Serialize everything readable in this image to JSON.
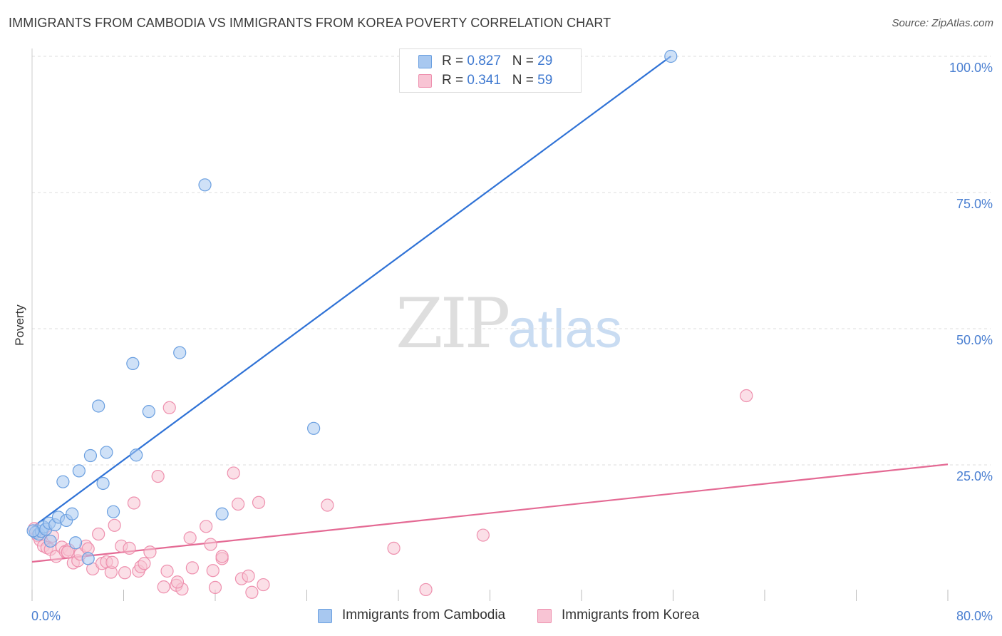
{
  "header": {
    "title": "IMMIGRANTS FROM CAMBODIA VS IMMIGRANTS FROM KOREA POVERTY CORRELATION CHART",
    "source": "Source: ZipAtlas.com"
  },
  "watermark": {
    "zip": "ZIP",
    "atlas": "atlas"
  },
  "legend_top": {
    "rows": [
      {
        "r_label": "R = ",
        "r_value": "0.827",
        "n_label": "N = ",
        "n_value": "29",
        "color": "#a8c8f0",
        "border": "#6a9fe0"
      },
      {
        "r_label": "R = ",
        "r_value": "0.341",
        "n_label": "N = ",
        "n_value": "59",
        "color": "#f8c4d4",
        "border": "#ee90ae"
      }
    ]
  },
  "legend_bottom": {
    "items": [
      {
        "label": "Immigrants from Cambodia",
        "color": "#a8c8f0",
        "border": "#6a9fe0"
      },
      {
        "label": "Immigrants from Korea",
        "color": "#f8c4d4",
        "border": "#ee90ae"
      }
    ]
  },
  "chart_data": {
    "type": "scatter",
    "title": "IMMIGRANTS FROM CAMBODIA VS IMMIGRANTS FROM KOREA POVERTY CORRELATION CHART",
    "xlabel": "",
    "ylabel": "Poverty",
    "xlim": [
      0,
      80
    ],
    "ylim": [
      0,
      104
    ],
    "x_ticks_labeled": [
      {
        "value": 0,
        "label": "0.0%"
      },
      {
        "value": 80,
        "label": "80.0%"
      }
    ],
    "y_ticks_labeled": [
      {
        "value": 25,
        "label": "25.0%"
      },
      {
        "value": 50,
        "label": "50.0%"
      },
      {
        "value": 75,
        "label": "75.0%"
      },
      {
        "value": 100,
        "label": "100.0%"
      }
    ],
    "x_minor_ticks": [
      0,
      8,
      16,
      24,
      32,
      40,
      48,
      56,
      64,
      72,
      80
    ],
    "grid": "horizontal dashed",
    "series": [
      {
        "name": "Immigrants from Cambodia",
        "color": "#6a9fe0",
        "fill": "#a8c8f0",
        "line_color": "#2f72d6",
        "trend": {
          "x": [
            0,
            55.8
          ],
          "y": [
            13.5,
            100.0
          ]
        },
        "points": [
          [
            0.3,
            12.6
          ],
          [
            0.6,
            12.3
          ],
          [
            0.8,
            12.8
          ],
          [
            1.0,
            13.6
          ],
          [
            1.2,
            13.2
          ],
          [
            1.5,
            14.3
          ],
          [
            1.6,
            11.0
          ],
          [
            2.0,
            14.0
          ],
          [
            2.3,
            15.4
          ],
          [
            2.7,
            21.9
          ],
          [
            3.0,
            14.8
          ],
          [
            3.5,
            16.0
          ],
          [
            3.8,
            10.7
          ],
          [
            4.1,
            23.9
          ],
          [
            4.9,
            7.8
          ],
          [
            5.1,
            26.7
          ],
          [
            5.8,
            35.8
          ],
          [
            6.2,
            21.6
          ],
          [
            6.5,
            27.3
          ],
          [
            7.1,
            16.4
          ],
          [
            8.8,
            43.6
          ],
          [
            9.1,
            26.8
          ],
          [
            10.2,
            34.8
          ],
          [
            12.9,
            45.6
          ],
          [
            15.1,
            76.4
          ],
          [
            16.6,
            16.0
          ],
          [
            24.6,
            31.7
          ],
          [
            55.8,
            100.0
          ],
          [
            0.1,
            12.9
          ]
        ]
      },
      {
        "name": "Immigrants from Korea",
        "color": "#ee90ae",
        "fill": "#f8c4d4",
        "line_color": "#e46a94",
        "trend": {
          "x": [
            0,
            80
          ],
          "y": [
            7.2,
            25.1
          ]
        },
        "points": [
          [
            0.2,
            13.3
          ],
          [
            0.5,
            12.0
          ],
          [
            0.7,
            11.2
          ],
          [
            1.0,
            10.1
          ],
          [
            1.3,
            9.8
          ],
          [
            1.6,
            9.5
          ],
          [
            1.8,
            11.9
          ],
          [
            2.1,
            8.2
          ],
          [
            2.6,
            9.9
          ],
          [
            2.9,
            9.1
          ],
          [
            3.2,
            9.4
          ],
          [
            3.6,
            7.0
          ],
          [
            4.0,
            7.4
          ],
          [
            4.2,
            8.6
          ],
          [
            4.7,
            10.1
          ],
          [
            4.9,
            9.6
          ],
          [
            5.3,
            5.9
          ],
          [
            5.8,
            12.3
          ],
          [
            6.1,
            6.9
          ],
          [
            6.5,
            7.2
          ],
          [
            6.9,
            5.3
          ],
          [
            7.2,
            13.9
          ],
          [
            7.8,
            10.1
          ],
          [
            8.1,
            5.2
          ],
          [
            8.5,
            9.7
          ],
          [
            8.9,
            18.0
          ],
          [
            9.3,
            5.5
          ],
          [
            9.5,
            6.3
          ],
          [
            9.8,
            6.9
          ],
          [
            10.3,
            9.0
          ],
          [
            11.0,
            22.9
          ],
          [
            11.5,
            2.6
          ],
          [
            11.8,
            5.5
          ],
          [
            12.0,
            35.5
          ],
          [
            12.6,
            2.9
          ],
          [
            13.1,
            2.2
          ],
          [
            13.8,
            11.6
          ],
          [
            14.0,
            6.1
          ],
          [
            15.2,
            13.7
          ],
          [
            15.6,
            10.4
          ],
          [
            15.8,
            5.6
          ],
          [
            16.0,
            2.5
          ],
          [
            16.6,
            7.8
          ],
          [
            17.6,
            23.5
          ],
          [
            18.0,
            17.8
          ],
          [
            18.3,
            4.1
          ],
          [
            18.9,
            4.6
          ],
          [
            19.2,
            1.6
          ],
          [
            19.8,
            18.1
          ],
          [
            20.2,
            3.0
          ],
          [
            25.8,
            17.6
          ],
          [
            31.6,
            9.7
          ],
          [
            34.4,
            2.1
          ],
          [
            39.4,
            12.1
          ],
          [
            62.4,
            37.7
          ],
          [
            16.6,
            8.2
          ],
          [
            7.0,
            7.1
          ],
          [
            12.7,
            3.5
          ],
          [
            3.1,
            9.0
          ]
        ]
      }
    ]
  }
}
